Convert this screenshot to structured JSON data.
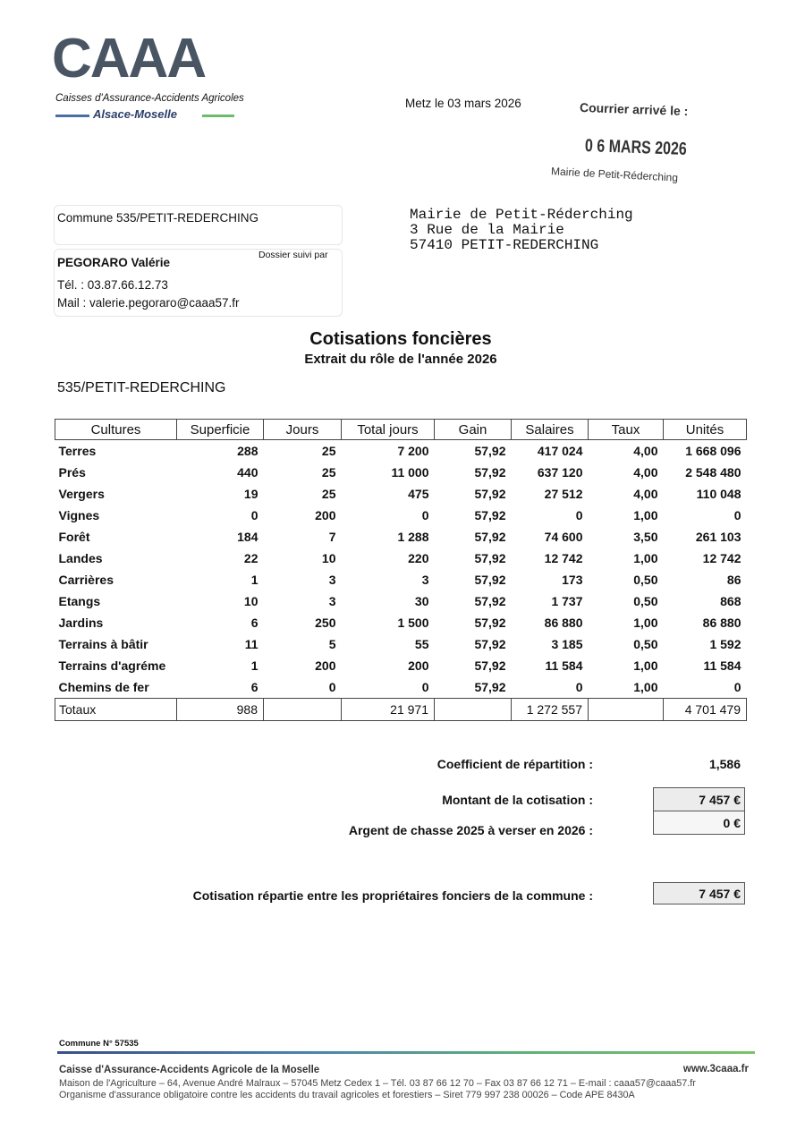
{
  "header": {
    "logo": "CAAA",
    "org_name": "Caisses d'Assurance-Accidents Agricoles",
    "region": "Alsace-Moselle",
    "place_date": "Metz le 03 mars 2026"
  },
  "stamp": {
    "title": "Courrier arrivé le :",
    "date": "0 6 MARS 2026",
    "recipient": "Mairie de Petit-Réderching"
  },
  "sender": {
    "commune": "Commune 535/PETIT-REDERCHING",
    "followed_by": "Dossier suivi par",
    "name": "PEGORARO Valérie",
    "phone": "Tél. : 03.87.66.12.73",
    "mail": "Mail : valerie.pegoraro@caaa57.fr"
  },
  "address": [
    "Mairie de Petit-Réderching",
    "3 Rue de la Mairie",
    "57410 PETIT-REDERCHING"
  ],
  "title": "Cotisations foncières",
  "subtitle": "Extrait du rôle de l'année 2026",
  "commune_label": "535/PETIT-REDERCHING",
  "table": {
    "columns": [
      "Cultures",
      "Superficie",
      "Jours",
      "Total jours",
      "Gain",
      "Salaires",
      "Taux",
      "Unités"
    ],
    "rows": [
      [
        "Terres",
        "288",
        "25",
        "7 200",
        "57,92",
        "417 024",
        "4,00",
        "1 668 096"
      ],
      [
        "Prés",
        "440",
        "25",
        "11 000",
        "57,92",
        "637 120",
        "4,00",
        "2 548 480"
      ],
      [
        "Vergers",
        "19",
        "25",
        "475",
        "57,92",
        "27 512",
        "4,00",
        "110 048"
      ],
      [
        "Vignes",
        "0",
        "200",
        "0",
        "57,92",
        "0",
        "1,00",
        "0"
      ],
      [
        "Forêt",
        "184",
        "7",
        "1 288",
        "57,92",
        "74 600",
        "3,50",
        "261 103"
      ],
      [
        "Landes",
        "22",
        "10",
        "220",
        "57,92",
        "12 742",
        "1,00",
        "12 742"
      ],
      [
        "Carrières",
        "1",
        "3",
        "3",
        "57,92",
        "173",
        "0,50",
        "86"
      ],
      [
        "Etangs",
        "10",
        "3",
        "30",
        "57,92",
        "1 737",
        "0,50",
        "868"
      ],
      [
        "Jardins",
        "6",
        "250",
        "1 500",
        "57,92",
        "86 880",
        "1,00",
        "86 880"
      ],
      [
        "Terrains à bâtir",
        "11",
        "5",
        "55",
        "57,92",
        "3 185",
        "0,50",
        "1 592"
      ],
      [
        "Terrains d'agréme",
        "1",
        "200",
        "200",
        "57,92",
        "11 584",
        "1,00",
        "11 584"
      ],
      [
        "Chemins de fer",
        "6",
        "0",
        "0",
        "57,92",
        "0",
        "1,00",
        "0"
      ]
    ],
    "totals": [
      "Totaux",
      "988",
      null,
      "21 971",
      null,
      "1 272 557",
      null,
      "4 701 479"
    ]
  },
  "summary": {
    "coefficient": {
      "label": "Coefficient de répartition :",
      "value": "1,586"
    },
    "montant": {
      "label": "Montant de la cotisation :",
      "value": "7 457 €"
    },
    "chasse": {
      "label": "Argent de chasse 2025 à verser en 2026 :",
      "value": "0 €"
    },
    "repartie": {
      "label": "Cotisation répartie entre les propriétaires fonciers de la commune :",
      "value": "7 457 €"
    }
  },
  "footer": {
    "commune_no": "Commune N° 57535",
    "org": "Caisse d'Assurance-Accidents Agricole de la Moselle",
    "website": "www.3caaa.fr",
    "line1": "Maison de l'Agriculture – 64, Avenue André Malraux – 57045 Metz Cedex 1 – Tél. 03 87 66 12 70 – Fax 03 87 66 12 71 – E-mail : caaa57@caaa57.fr",
    "line2": "Organisme d'assurance obligatoire contre les accidents du travail agricoles et forestiers – Siret 779 997 238 00026 – Code APE 8430A"
  }
}
